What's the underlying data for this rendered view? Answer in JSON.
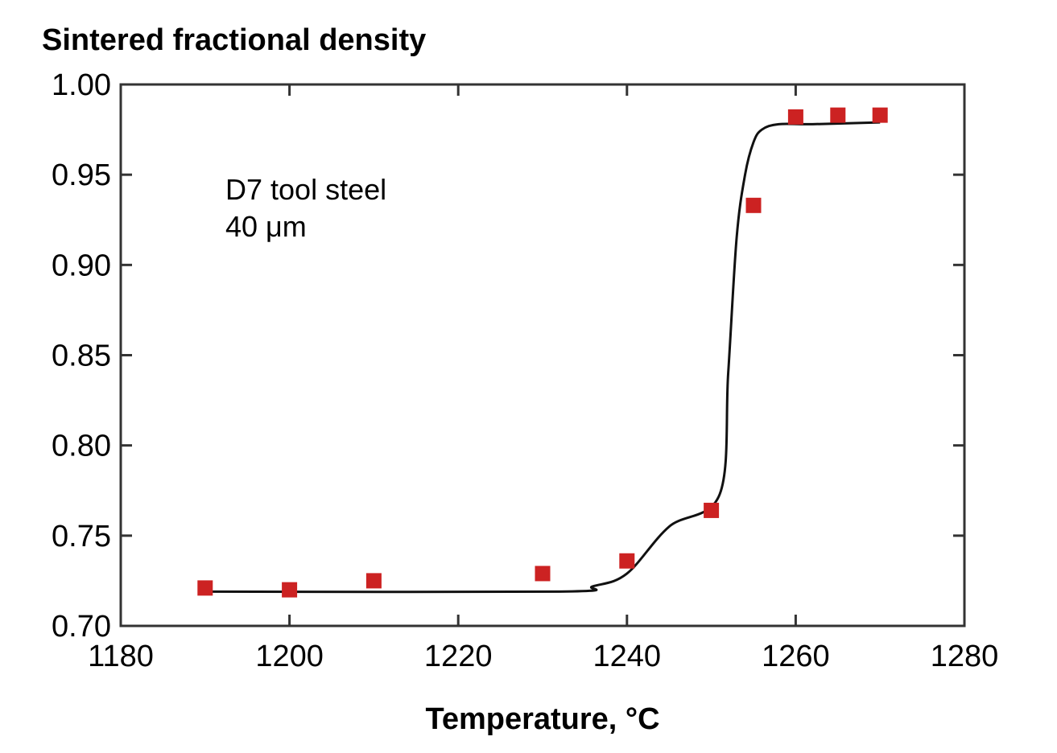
{
  "chart_data": {
    "type": "scatter",
    "title": "",
    "ylabel": "Sintered fractional density",
    "xlabel": "Temperature, °C",
    "xlim": [
      1180,
      1280
    ],
    "ylim": [
      0.7,
      1.0
    ],
    "x_ticks": [
      1180,
      1200,
      1220,
      1240,
      1260,
      1280
    ],
    "x_tick_labels": [
      "1180",
      "1200",
      "1220",
      "1240",
      "1260",
      "1280"
    ],
    "y_ticks": [
      0.7,
      0.75,
      0.8,
      0.85,
      0.9,
      0.95,
      1.0
    ],
    "y_tick_labels": [
      "0.70",
      "0.75",
      "0.80",
      "0.85",
      "0.90",
      "0.95",
      "1.00"
    ],
    "grid": false,
    "annotation": [
      "D7 tool steel",
      "40 μm"
    ],
    "series": [
      {
        "type": "scatter",
        "marker": "square",
        "color": "#cc2222",
        "x": [
          1190,
          1200,
          1210,
          1230,
          1240,
          1250,
          1255,
          1260,
          1265,
          1270
        ],
        "y": [
          0.721,
          0.72,
          0.725,
          0.729,
          0.736,
          0.764,
          0.933,
          0.982,
          0.983,
          0.983
        ]
      },
      {
        "type": "line",
        "color": "#111111",
        "x": [
          1190,
          1232,
          1236,
          1240,
          1245,
          1251,
          1252,
          1253,
          1254,
          1255,
          1256,
          1258,
          1262,
          1270
        ],
        "y": [
          0.719,
          0.719,
          0.722,
          0.729,
          0.755,
          0.773,
          0.84,
          0.915,
          0.95,
          0.968,
          0.975,
          0.978,
          0.978,
          0.979
        ]
      }
    ]
  }
}
